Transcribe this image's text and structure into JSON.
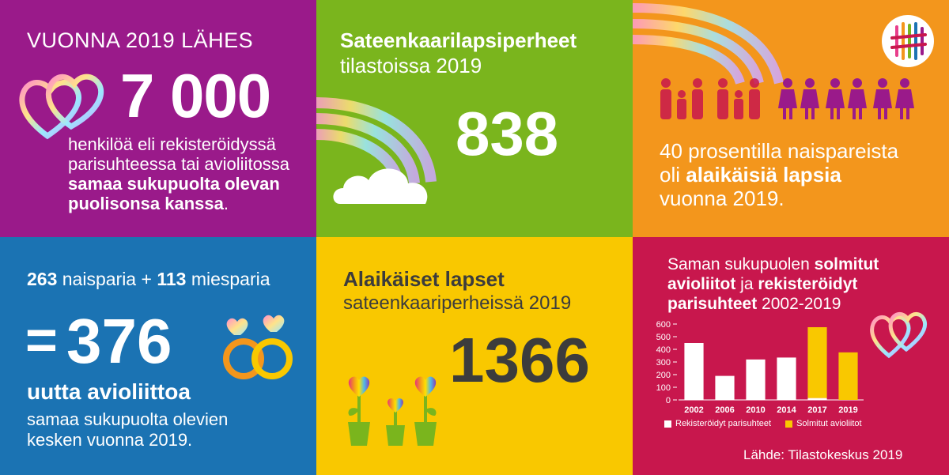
{
  "colors": {
    "purple": "#9a1a8a",
    "green": "#7ab51d",
    "orange": "#f3961c",
    "blue": "#1b73b3",
    "yellow": "#f9c800",
    "crimson": "#c8174d",
    "dark_gray": "#3c3c3c"
  },
  "icons": [
    "hearts-icon",
    "rainbow-cloud-icon",
    "rainbow-icon",
    "family-icon",
    "stats-logo-icon",
    "rings-icon",
    "heart-flowers-icon",
    "hearts-icon"
  ],
  "panel1": {
    "heading": "VUONNA 2019 LÄHES",
    "number": "7 000",
    "line1": "henkilöä eli rekisteröidyssä",
    "line2": "parisuhteessa tai avioliitossa",
    "line3": "samaa sukupuolta olevan",
    "line4_bold": "puolisonsa kanssa",
    "line4_tail": "."
  },
  "panel2": {
    "title": "Sateenkaarilapsiperheet",
    "subtitle": "tilastoissa 2019",
    "number": "838"
  },
  "panel3": {
    "line1": "40 prosentilla naispareista",
    "line2_a": "oli ",
    "line2_bold": "alaikäisiä lapsia",
    "line3": "vuonna 2019."
  },
  "panel4": {
    "n1": "263",
    "t1": " naisparia + ",
    "n2": "113",
    "t2": " miesparia",
    "eq": "=",
    "number": "376",
    "bold_line": "uutta avioliittoa",
    "line1": "samaa sukupuolta olevien",
    "line2": "kesken vuonna 2019."
  },
  "panel5": {
    "title": "Alaikäiset lapset",
    "subtitle": "sateenkaariperheissä 2019",
    "number": "1366"
  },
  "panel6": {
    "title_a": "Saman sukupuolen ",
    "title_b": "solmitut",
    "title_c": "avioliitot",
    "title_d": " ja ",
    "title_e": "rekisteröidyt",
    "title_f": "parisuhteet",
    "title_g": " 2002-2019",
    "source": "Lähde: Tilastokeskus 2019"
  },
  "chart_data": {
    "type": "bar",
    "stacked": true,
    "categories": [
      "2002",
      "2006",
      "2010",
      "2014",
      "2017",
      "2019"
    ],
    "yticks": [
      "600",
      "500",
      "400",
      "300",
      "200",
      "100",
      "0"
    ],
    "ylim": [
      0,
      600
    ],
    "grid": false,
    "legend_position": "bottom",
    "series": [
      {
        "name": "Rekisteröidyt parisuhteet",
        "color": "#ffffff",
        "values": [
          450,
          190,
          320,
          335,
          15,
          0
        ]
      },
      {
        "name": "Solmitut avioliitot",
        "color": "#f9c800",
        "values": [
          0,
          0,
          0,
          0,
          560,
          376
        ]
      }
    ]
  }
}
